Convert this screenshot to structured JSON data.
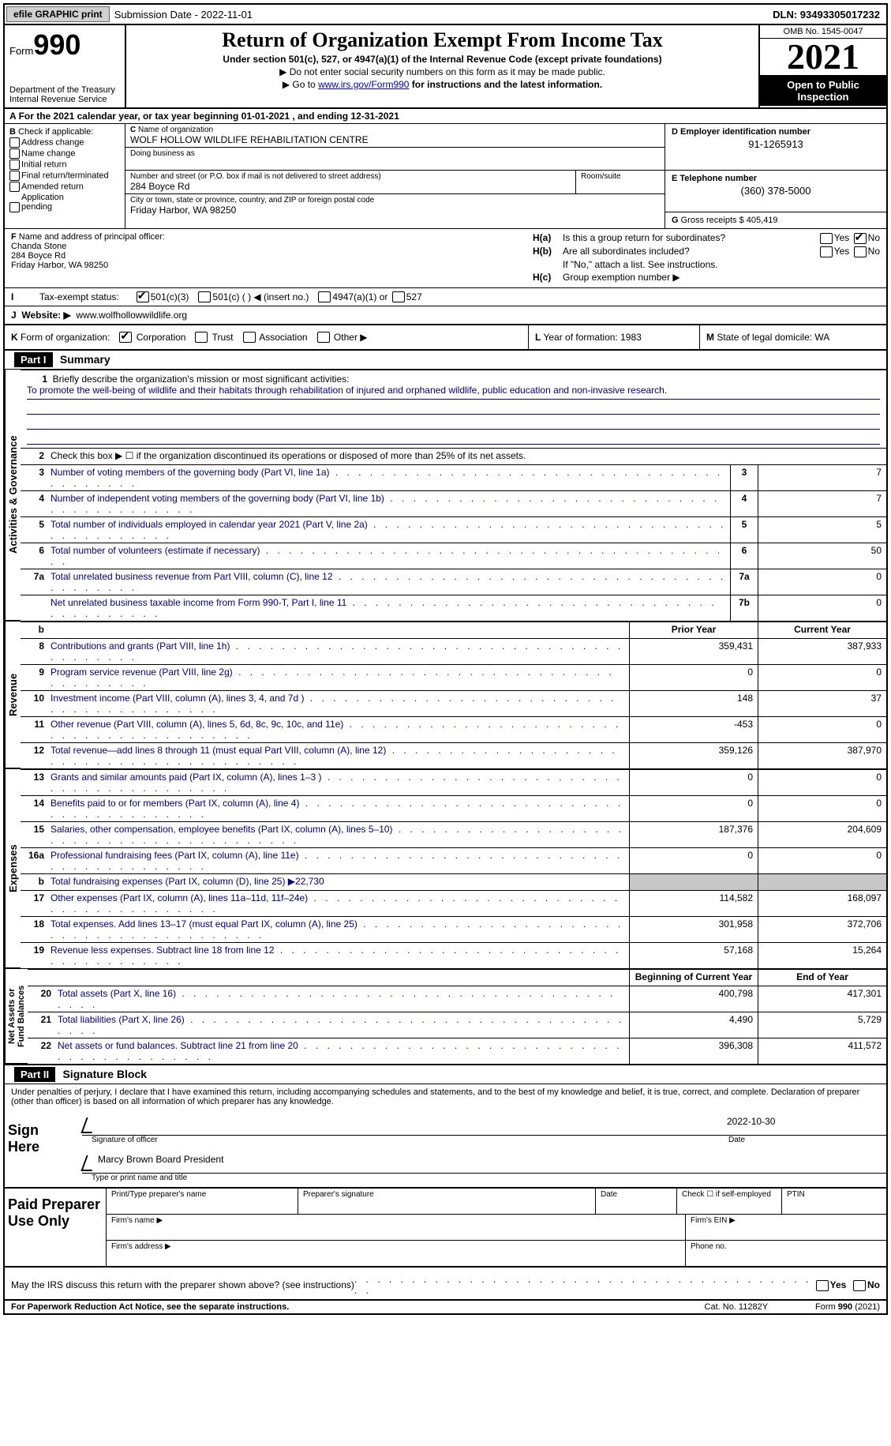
{
  "top": {
    "efile_btn": "efile GRAPHIC print",
    "submission": "Submission Date - 2022-11-01",
    "dln": "DLN: 93493305017232"
  },
  "header": {
    "form_prefix": "Form",
    "form_number": "990",
    "dept": "Department of the Treasury\nInternal Revenue Service",
    "title": "Return of Organization Exempt From Income Tax",
    "subtitle": "Under section 501(c), 527, or 4947(a)(1) of the Internal Revenue Code (except private foundations)",
    "note1": "Do not enter social security numbers on this form as it may be made public.",
    "note2_pre": "Go to ",
    "note2_link": "www.irs.gov/Form990",
    "note2_post": " for instructions and the latest information.",
    "omb": "OMB No. 1545-0047",
    "year": "2021",
    "public": "Open to Public Inspection"
  },
  "period": "For the 2021 calendar year, or tax year beginning 01-01-2021   , and ending 12-31-2021",
  "boxB": {
    "label": "B Check if applicable:",
    "items": [
      "Address change",
      "Name change",
      "Initial return",
      "Final return/terminated",
      "Amended return",
      "Application pending"
    ]
  },
  "boxC": {
    "name_lbl": "C Name of organization",
    "name": "WOLF HOLLOW WILDLIFE REHABILITATION CENTRE",
    "dba_lbl": "Doing business as",
    "street_lbl": "Number and street (or P.O. box if mail is not delivered to street address)",
    "room_lbl": "Room/suite",
    "street": "284 Boyce Rd",
    "city_lbl": "City or town, state or province, country, and ZIP or foreign postal code",
    "city": "Friday Harbor, WA  98250"
  },
  "boxD": {
    "lbl": "D Employer identification number",
    "val": "91-1265913"
  },
  "boxE": {
    "lbl": "E Telephone number",
    "val": "(360) 378-5000"
  },
  "boxG": {
    "lbl": "G Gross receipts $",
    "val": "405,419"
  },
  "boxF": {
    "lbl": "F Name and address of principal officer:",
    "name": "Chanda Stone",
    "street": "284 Boyce Rd",
    "city": "Friday Harbor, WA  98250"
  },
  "boxH": {
    "a_lbl": "H(a)",
    "a_txt": "Is this a group return for subordinates?",
    "a_no_checked": true,
    "b_lbl": "H(b)",
    "b_txt": "Are all subordinates included?",
    "b_note": "If \"No,\" attach a list. See instructions.",
    "c_lbl": "H(c)",
    "c_txt": "Group exemption number ▶"
  },
  "boxI": {
    "lbl": "I",
    "txt": "Tax-exempt status:",
    "opt1": "501(c)(3)",
    "opt2": "501(c) (  ) ◀ (insert no.)",
    "opt3": "4947(a)(1) or",
    "opt4": "527"
  },
  "boxJ": {
    "lbl": "J",
    "txt": "Website: ▶",
    "val": "www.wolfhollowwildlife.org"
  },
  "boxK": {
    "lbl": "K",
    "txt": "Form of organization:",
    "opts": [
      "Corporation",
      "Trust",
      "Association",
      "Other ▶"
    ]
  },
  "boxL": {
    "lbl": "L",
    "txt": "Year of formation:",
    "val": "1983"
  },
  "boxM": {
    "lbl": "M",
    "txt": "State of legal domicile:",
    "val": "WA"
  },
  "parts": {
    "p1": {
      "num": "Part I",
      "title": "Summary"
    },
    "p2": {
      "num": "Part II",
      "title": "Signature Block"
    }
  },
  "summary": {
    "mission_lbl": "Briefly describe the organization's mission or most significant activities:",
    "mission": "To promote the well-being of wildlife and their habitats through rehabilitation of injured and orphaned wildlife, public education and non-invasive research.",
    "line2": "Check this box ▶ ☐ if the organization discontinued its operations or disposed of more than 25% of its net assets.",
    "rows_ag": [
      {
        "n": "3",
        "t": "Number of voting members of the governing body (Part VI, line 1a)",
        "bn": "3",
        "v": "7"
      },
      {
        "n": "4",
        "t": "Number of independent voting members of the governing body (Part VI, line 1b)",
        "bn": "4",
        "v": "7"
      },
      {
        "n": "5",
        "t": "Total number of individuals employed in calendar year 2021 (Part V, line 2a)",
        "bn": "5",
        "v": "5"
      },
      {
        "n": "6",
        "t": "Total number of volunteers (estimate if necessary)",
        "bn": "6",
        "v": "50"
      },
      {
        "n": "7a",
        "t": "Total unrelated business revenue from Part VIII, column (C), line 12",
        "bn": "7a",
        "v": "0"
      },
      {
        "n": "",
        "t": "Net unrelated business taxable income from Form 990-T, Part I, line 11",
        "bn": "7b",
        "v": "0"
      }
    ],
    "hdr_prior": "Prior Year",
    "hdr_curr": "Current Year",
    "rows_rev": [
      {
        "n": "8",
        "t": "Contributions and grants (Part VIII, line 1h)",
        "p": "359,431",
        "c": "387,933"
      },
      {
        "n": "9",
        "t": "Program service revenue (Part VIII, line 2g)",
        "p": "0",
        "c": "0"
      },
      {
        "n": "10",
        "t": "Investment income (Part VIII, column (A), lines 3, 4, and 7d )",
        "p": "148",
        "c": "37"
      },
      {
        "n": "11",
        "t": "Other revenue (Part VIII, column (A), lines 5, 6d, 8c, 9c, 10c, and 11e)",
        "p": "-453",
        "c": "0"
      },
      {
        "n": "12",
        "t": "Total revenue—add lines 8 through 11 (must equal Part VIII, column (A), line 12)",
        "p": "359,126",
        "c": "387,970"
      }
    ],
    "rows_exp": [
      {
        "n": "13",
        "t": "Grants and similar amounts paid (Part IX, column (A), lines 1–3 )",
        "p": "0",
        "c": "0"
      },
      {
        "n": "14",
        "t": "Benefits paid to or for members (Part IX, column (A), line 4)",
        "p": "0",
        "c": "0"
      },
      {
        "n": "15",
        "t": "Salaries, other compensation, employee benefits (Part IX, column (A), lines 5–10)",
        "p": "187,376",
        "c": "204,609"
      },
      {
        "n": "16a",
        "t": "Professional fundraising fees (Part IX, column (A), line 11e)",
        "p": "0",
        "c": "0"
      },
      {
        "n": "b",
        "t": "Total fundraising expenses (Part IX, column (D), line 25) ▶22,730",
        "p": "GREY",
        "c": "GREY"
      },
      {
        "n": "17",
        "t": "Other expenses (Part IX, column (A), lines 11a–11d, 11f–24e)",
        "p": "114,582",
        "c": "168,097"
      },
      {
        "n": "18",
        "t": "Total expenses. Add lines 13–17 (must equal Part IX, column (A), line 25)",
        "p": "301,958",
        "c": "372,706"
      },
      {
        "n": "19",
        "t": "Revenue less expenses. Subtract line 18 from line 12",
        "p": "57,168",
        "c": "15,264"
      }
    ],
    "hdr_beg": "Beginning of Current Year",
    "hdr_end": "End of Year",
    "rows_na": [
      {
        "n": "20",
        "t": "Total assets (Part X, line 16)",
        "p": "400,798",
        "c": "417,301"
      },
      {
        "n": "21",
        "t": "Total liabilities (Part X, line 26)",
        "p": "4,490",
        "c": "5,729"
      },
      {
        "n": "22",
        "t": "Net assets or fund balances. Subtract line 21 from line 20",
        "p": "396,308",
        "c": "411,572"
      }
    ],
    "vlabels": {
      "ag": "Activities & Governance",
      "rev": "Revenue",
      "exp": "Expenses",
      "na": "Net Assets or\nFund Balances"
    }
  },
  "sig": {
    "penalty": "Under penalties of perjury, I declare that I have examined this return, including accompanying schedules and statements, and to the best of my knowledge and belief, it is true, correct, and complete. Declaration of preparer (other than officer) is based on all information of which preparer has any knowledge.",
    "sign_here": "Sign Here",
    "sig_officer": "Signature of officer",
    "date": "2022-10-30",
    "date_lbl": "Date",
    "name": "Marcy Brown Board President",
    "name_lbl": "Type or print name and title",
    "paid": "Paid Preparer Use Only",
    "prep_name_lbl": "Print/Type preparer's name",
    "prep_sig_lbl": "Preparer's signature",
    "prep_date_lbl": "Date",
    "check_if_lbl": "Check ☐ if self-employed",
    "ptin_lbl": "PTIN",
    "firm_name_lbl": "Firm's name  ▶",
    "firm_ein_lbl": "Firm's EIN ▶",
    "firm_addr_lbl": "Firm's address ▶",
    "phone_lbl": "Phone no."
  },
  "footer": {
    "discuss": "May the IRS discuss this return with the preparer shown above? (see instructions)",
    "paperwork": "For Paperwork Reduction Act Notice, see the separate instructions.",
    "cat": "Cat. No. 11282Y",
    "formno": "Form 990 (2021)"
  }
}
